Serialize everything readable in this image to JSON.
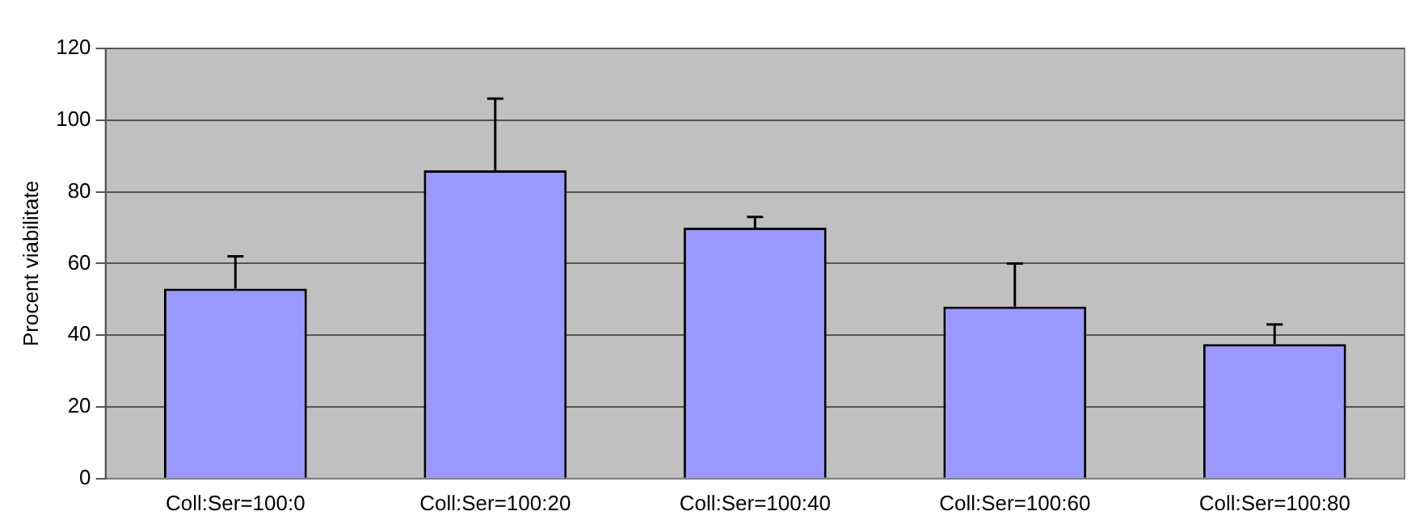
{
  "chart_data": {
    "type": "bar",
    "ylabel": "Procent viabilitate",
    "categories": [
      "Coll:Ser=100:0",
      "Coll:Ser=100:20",
      "Coll:Ser=100:40",
      "Coll:Ser=100:60",
      "Coll:Ser=100:80"
    ],
    "values": [
      53,
      86,
      70,
      48,
      37.5
    ],
    "errors": [
      [
        53,
        62
      ],
      [
        86,
        106
      ],
      [
        70,
        73
      ],
      [
        48,
        60
      ],
      [
        37.5,
        43
      ]
    ],
    "color": "#9999ff",
    "ylim": [
      0,
      120
    ],
    "yticks": [
      0,
      20,
      40,
      60,
      80,
      100,
      120
    ],
    "grid": "y",
    "legend": false
  }
}
